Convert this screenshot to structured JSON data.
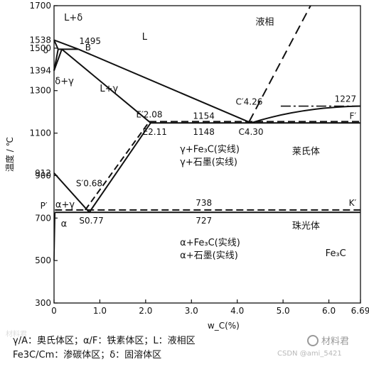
{
  "chart_data": {
    "type": "diagram",
    "ylabel": "温度 / ℃",
    "xlabel": "w_C(%)",
    "xlim": [
      0,
      6.69
    ],
    "ylim": [
      300,
      1700
    ],
    "x_ticks": [
      "0",
      "1.0",
      "2.0",
      "3.0",
      "4.0",
      "5.0",
      "6.0",
      "6.69"
    ],
    "x_tick_values": [
      0,
      1.0,
      2.0,
      3.0,
      4.0,
      5.0,
      6.0,
      6.69
    ],
    "y_ticks": [
      "300",
      "500",
      "700",
      "900",
      "1100",
      "1300",
      "1500",
      "1700"
    ],
    "y_tick_values": [
      300,
      500,
      700,
      900,
      1100,
      1300,
      1500,
      1700
    ],
    "temperature_labels": [
      {
        "text": "1538",
        "t": 1538
      },
      {
        "text": "1394",
        "t": 1394
      },
      {
        "text": "912",
        "t": 912
      },
      {
        "text": "δ",
        "t": 1490
      }
    ],
    "points": [
      {
        "text": "1495",
        "x": 0.53,
        "t": 1495
      },
      {
        "text": "B",
        "x": 0.53,
        "t": 1495
      },
      {
        "text": "E′2.08",
        "x": 2.08,
        "t": 1154
      },
      {
        "text": "E2.11",
        "x": 2.11,
        "t": 1148
      },
      {
        "text": "C′4.26",
        "x": 4.26,
        "t": 1154
      },
      {
        "text": "C4.30",
        "x": 4.3,
        "t": 1148
      },
      {
        "text": "S′0.68",
        "x": 0.68,
        "t": 738
      },
      {
        "text": "S0.77",
        "x": 0.77,
        "t": 727
      },
      {
        "text": "P′",
        "x": 0.02,
        "t": 738
      },
      {
        "text": "K′",
        "x": 6.69,
        "t": 738
      },
      {
        "text": "F′",
        "x": 6.69,
        "t": 1154
      }
    ],
    "isotherms": [
      {
        "text": "1154",
        "t": 1154,
        "style": "dashed"
      },
      {
        "text": "1148",
        "t": 1148,
        "style": "solid"
      },
      {
        "text": "738",
        "t": 738,
        "style": "dashed"
      },
      {
        "text": "727",
        "t": 727,
        "style": "solid"
      },
      {
        "text": "1227",
        "t": 1227,
        "style": "dash-dot"
      }
    ],
    "regions": [
      {
        "text": "L+δ"
      },
      {
        "text": "L"
      },
      {
        "text": "液相"
      },
      {
        "text": "δ+γ"
      },
      {
        "text": "L+γ"
      },
      {
        "text": "γ+Fe₃C(实线)"
      },
      {
        "text": "γ+石墨(实线)"
      },
      {
        "text": "莱氏体"
      },
      {
        "text": "α+γ"
      },
      {
        "text": "α"
      },
      {
        "text": "珠光体"
      },
      {
        "text": "α+Fe₃C(实线)"
      },
      {
        "text": "α+石墨(实线)"
      },
      {
        "text": "Fe₃C"
      }
    ],
    "lines": {
      "liquidus_delta": [
        [
          0,
          1538
        ],
        [
          0.53,
          1495
        ]
      ],
      "liquidus_gamma": [
        [
          0.53,
          1495
        ],
        [
          4.3,
          1148
        ]
      ],
      "liquidus_fe3c": [
        [
          4.3,
          1148
        ],
        [
          6.69,
          1227
        ]
      ],
      "liquidus_graphite": [
        [
          4.26,
          1154
        ],
        [
          5.6,
          1700
        ]
      ],
      "solidus_gamma": [
        [
          0.17,
          1495
        ],
        [
          2.11,
          1148
        ]
      ],
      "peritectic": [
        [
          0.09,
          1495
        ],
        [
          0.53,
          1495
        ]
      ],
      "delta_solidus": [
        [
          0,
          1538
        ],
        [
          0.09,
          1495
        ]
      ],
      "delta_gamma_1": [
        [
          0,
          1394
        ],
        [
          0.09,
          1495
        ]
      ],
      "delta_gamma_2": [
        [
          0,
          1394
        ],
        [
          0.17,
          1495
        ]
      ],
      "acm": [
        [
          0.77,
          727
        ],
        [
          2.11,
          1148
        ]
      ],
      "acm_graphite": [
        [
          0.68,
          738
        ],
        [
          2.08,
          1154
        ]
      ],
      "a3": [
        [
          0,
          912
        ],
        [
          0.77,
          727
        ]
      ],
      "alpha_solvus": [
        [
          0,
          500
        ],
        [
          0.02,
          727
        ]
      ]
    }
  },
  "caption": {
    "line1": "γ/A：奥氏体区；α/F：铁素体区；L：液相区",
    "line2": "Fe3C/Cm：渗碳体区；δ：固溶体区"
  },
  "watermarks": {
    "logo": "材料君",
    "csdn": "CSDN @ami_5421",
    "faint": "材料君"
  }
}
